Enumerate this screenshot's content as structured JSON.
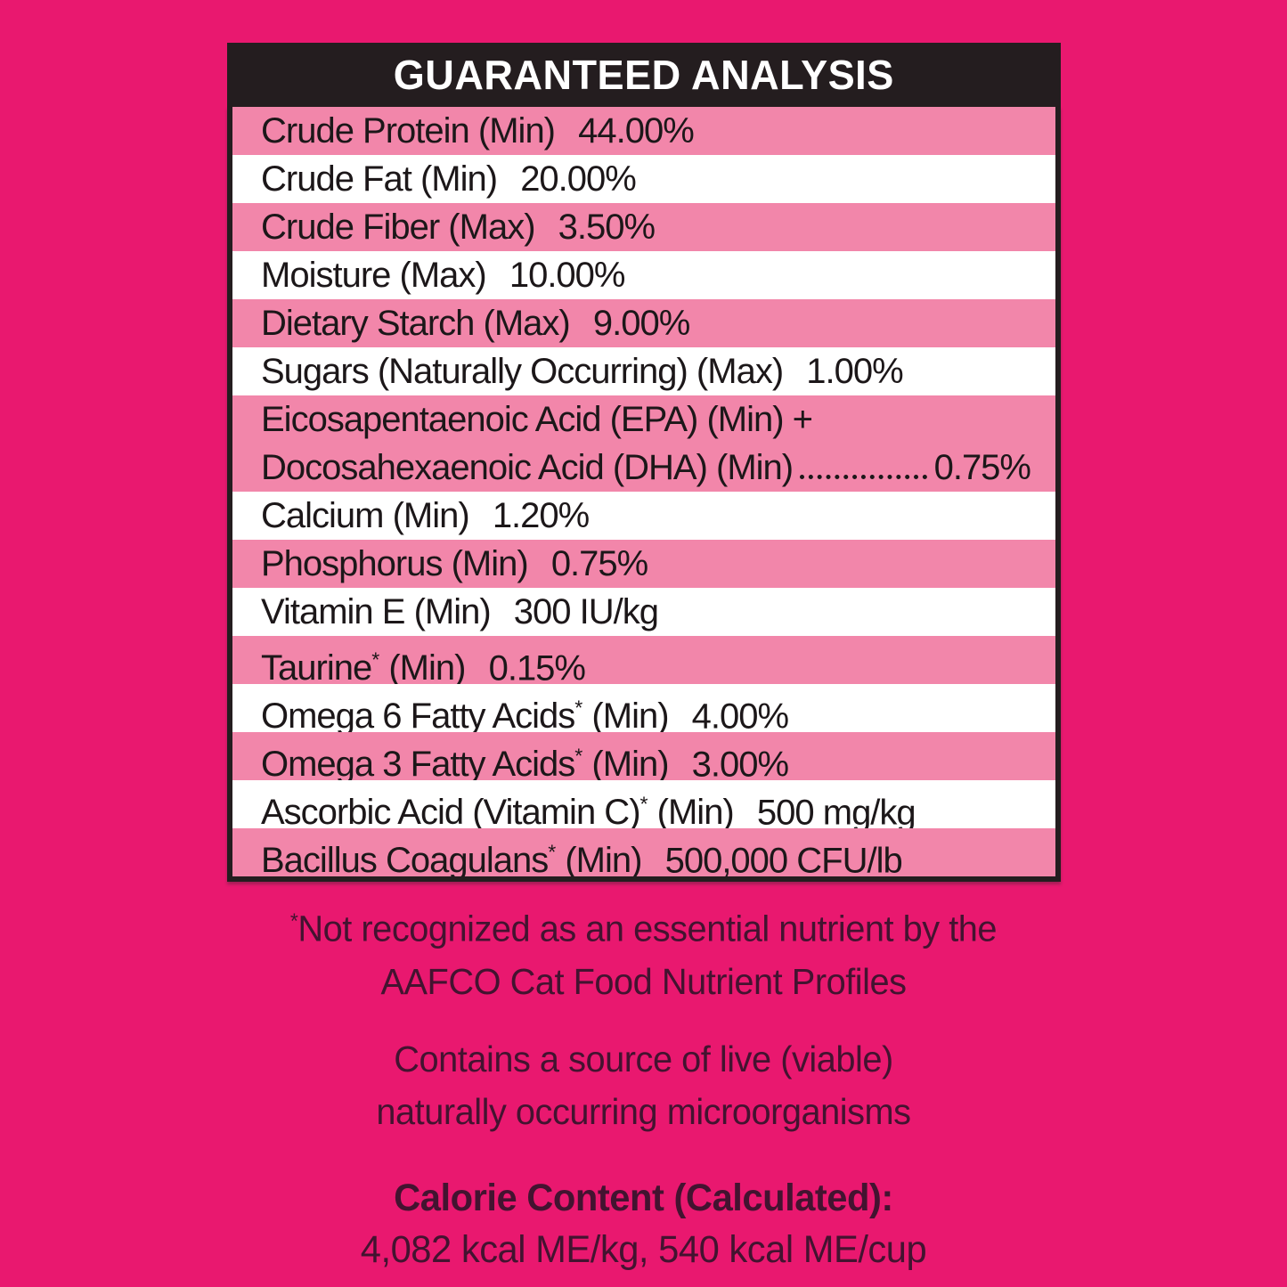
{
  "header": {
    "title": "GUARANTEED ANALYSIS"
  },
  "table": {
    "rows": [
      {
        "shade": "pink",
        "label": "Crude Protein (Min)",
        "sup": "",
        "label_after": "",
        "value": "44.00%"
      },
      {
        "shade": "white",
        "label": "Crude Fat (Min)",
        "sup": "",
        "label_after": "",
        "value": "20.00%"
      },
      {
        "shade": "pink",
        "label": "Crude Fiber (Max)",
        "sup": "",
        "label_after": "",
        "value": "3.50%"
      },
      {
        "shade": "white",
        "label": "Moisture (Max)",
        "sup": "",
        "label_after": "",
        "value": "10.00%"
      },
      {
        "shade": "pink",
        "label": "Dietary Starch (Max)",
        "sup": "",
        "label_after": "",
        "value": "9.00%"
      },
      {
        "shade": "white",
        "label": "Sugars (Naturally Occurring) (Max)",
        "sup": "",
        "label_after": "",
        "value": "1.00%"
      },
      {
        "shade": "pink",
        "line1": "Eicosapentaenoic Acid (EPA) (Min) +",
        "label": "Docosahexaenoic Acid (DHA) (Min)",
        "sup": "",
        "label_after": "",
        "value": "0.75%"
      },
      {
        "shade": "white",
        "label": "Calcium (Min)",
        "sup": "",
        "label_after": "",
        "value": "1.20%"
      },
      {
        "shade": "pink",
        "label": "Phosphorus (Min)",
        "sup": "",
        "label_after": "",
        "value": "0.75%"
      },
      {
        "shade": "white",
        "label": "Vitamin E (Min)",
        "sup": "",
        "label_after": "",
        "value": "300 IU/kg"
      },
      {
        "shade": "pink",
        "label": "Taurine",
        "sup": "*",
        "label_after": " (Min)",
        "value": "0.15%"
      },
      {
        "shade": "white",
        "label": "Omega 6 Fatty Acids",
        "sup": "*",
        "label_after": " (Min)",
        "value": "4.00%"
      },
      {
        "shade": "pink",
        "label": "Omega 3 Fatty Acids",
        "sup": "*",
        "label_after": " (Min)",
        "value": "3.00%"
      },
      {
        "shade": "white",
        "label": "Ascorbic Acid (Vitamin C)",
        "sup": "*",
        "label_after": " (Min)",
        "value": "500 mg/kg"
      },
      {
        "shade": "pink",
        "label": "Bacillus Coagulans",
        "sup": "*",
        "label_after": " (Min)",
        "value": "500,000 CFU/lb"
      }
    ]
  },
  "footnote": {
    "sup": "*",
    "line1": "Not recognized as an essential nutrient by the",
    "line2": "AAFCO Cat Food Nutrient Profiles"
  },
  "microorganisms_note": {
    "line1": "Contains a source of live (viable)",
    "line2": "naturally occurring microorganisms"
  },
  "calorie_content": {
    "heading": "Calorie Content (Calculated):",
    "values": "4,082 kcal ME/kg, 540 kcal ME/cup"
  },
  "colors": {
    "background": "#E9186F",
    "header_bg": "#241D1F",
    "row_pink": "#F286AA",
    "row_white": "#FFFFFF",
    "table_text": "#1C1719",
    "header_text": "#FFFFFF",
    "footer_text": "#431330"
  }
}
